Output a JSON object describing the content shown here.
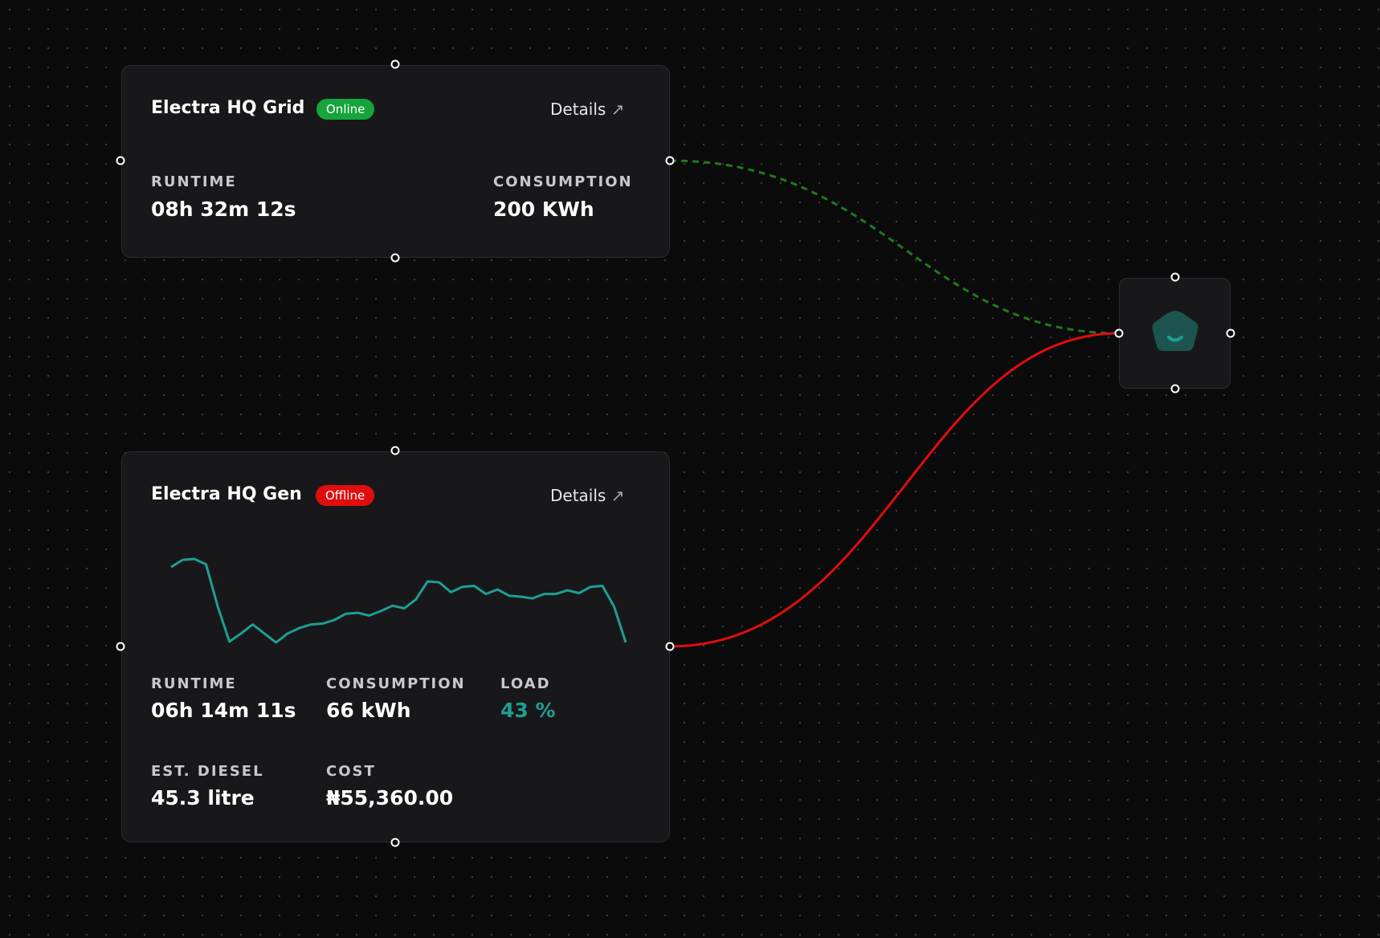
{
  "nodes": [
    {
      "title": "Electra HQ Grid",
      "status": "Online",
      "link": "Details",
      "stats": [
        {
          "label": "RUNTIME",
          "value": "08h 32m 12s"
        },
        {
          "label": "CONSUMPTION",
          "value": "200 KWh"
        }
      ]
    },
    {
      "title": "Electra HQ Gen",
      "status": "Offline",
      "link": "Details",
      "sparkline": {
        "color": "#1f9e94",
        "values": [
          84,
          92,
          93,
          87,
          40,
          1,
          10,
          20,
          10,
          0,
          10,
          16,
          20,
          21,
          25,
          32,
          33,
          30,
          35,
          41,
          38,
          48,
          68,
          67,
          56,
          62,
          63,
          54,
          59,
          52,
          51,
          49,
          54,
          54,
          58,
          55,
          62,
          63,
          40,
          0
        ]
      },
      "stats": [
        {
          "label": "RUNTIME",
          "value": "06h 14m 11s"
        },
        {
          "label": "CONSUMPTION",
          "value": "66 kWh"
        },
        {
          "label": "LOAD",
          "value": "43 %"
        },
        {
          "label": "EST. DIESEL",
          "value": "45.3 litre"
        },
        {
          "label": "COST",
          "value": "₦55,360.00"
        }
      ]
    }
  ]
}
